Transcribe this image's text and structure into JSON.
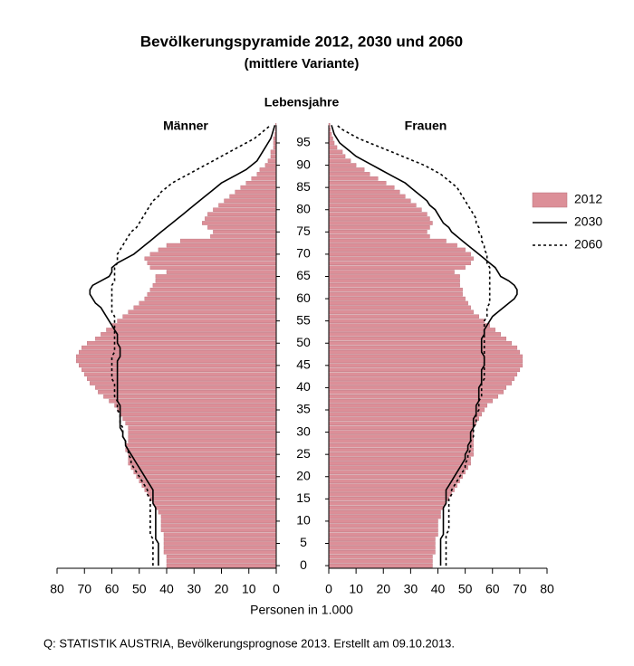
{
  "chart_data": {
    "type": "pyramid",
    "title": "Bevölkerungspyramide  2012, 2030 und 2060",
    "subtitle": "(mittlere Variante)",
    "y_label": "Lebensjahre",
    "left_label": "Männer",
    "right_label": "Frauen",
    "x_label": "Personen in 1.000",
    "source": "Q: STATISTIK AUSTRIA, Bevölkerungsprognose 2013. Erstellt am 09.10.2013.",
    "xlim": [
      0,
      80
    ],
    "xticks": [
      0,
      10,
      20,
      30,
      40,
      50,
      60,
      70,
      80
    ],
    "ylim": [
      -1,
      100
    ],
    "yticks": [
      0,
      5,
      10,
      15,
      20,
      25,
      30,
      35,
      40,
      45,
      50,
      55,
      60,
      65,
      70,
      75,
      80,
      85,
      90,
      95
    ],
    "ages": [
      0,
      1,
      2,
      3,
      4,
      5,
      6,
      7,
      8,
      9,
      10,
      11,
      12,
      13,
      14,
      15,
      16,
      17,
      18,
      19,
      20,
      21,
      22,
      23,
      24,
      25,
      26,
      27,
      28,
      29,
      30,
      31,
      32,
      33,
      34,
      35,
      36,
      37,
      38,
      39,
      40,
      41,
      42,
      43,
      44,
      45,
      46,
      47,
      48,
      49,
      50,
      51,
      52,
      53,
      54,
      55,
      56,
      57,
      58,
      59,
      60,
      61,
      62,
      63,
      64,
      65,
      66,
      67,
      68,
      69,
      70,
      71,
      72,
      73,
      74,
      75,
      76,
      77,
      78,
      79,
      80,
      81,
      82,
      83,
      84,
      85,
      86,
      87,
      88,
      89,
      90,
      91,
      92,
      93,
      94,
      95,
      96,
      97,
      98,
      99
    ],
    "series": [
      {
        "name": "2012",
        "style": "bar",
        "color": "#dc8f98",
        "male": [
          40,
          40,
          40,
          41,
          41,
          41,
          41,
          41,
          42,
          42,
          42,
          42,
          43,
          44,
          45,
          46,
          47,
          48,
          49,
          50,
          51,
          52,
          53,
          54,
          54,
          54,
          55,
          55,
          54,
          54,
          54,
          54,
          55,
          56,
          57,
          58,
          59,
          61,
          63,
          65,
          66,
          68,
          69,
          70,
          71,
          72,
          73,
          73,
          72,
          71,
          69,
          66,
          64,
          62,
          60,
          58,
          56,
          54,
          52,
          50,
          48,
          47,
          46,
          45,
          44,
          44,
          40,
          46,
          47,
          48,
          46,
          43,
          40,
          35,
          24,
          23,
          25,
          27,
          26,
          25,
          23,
          21,
          19,
          17,
          15,
          13,
          11,
          9,
          7,
          6,
          4,
          3,
          2,
          2,
          1,
          1,
          1,
          0.5,
          0.3,
          0.2
        ],
        "female": [
          38,
          38,
          38,
          39,
          39,
          39,
          39,
          40,
          40,
          40,
          40,
          41,
          41,
          42,
          43,
          44,
          45,
          46,
          47,
          48,
          49,
          50,
          51,
          52,
          52,
          53,
          53,
          53,
          53,
          53,
          53,
          53,
          54,
          55,
          56,
          57,
          58,
          60,
          62,
          64,
          65,
          67,
          68,
          69,
          70,
          71,
          71,
          71,
          70,
          69,
          67,
          65,
          63,
          61,
          59,
          57,
          55,
          53,
          52,
          51,
          50,
          49,
          49,
          48,
          48,
          48,
          46,
          50,
          52,
          53,
          52,
          50,
          47,
          43,
          37,
          36,
          37,
          38,
          37,
          36,
          34,
          32,
          30,
          28,
          26,
          24,
          21,
          18,
          15,
          13,
          10,
          8,
          6,
          5,
          3,
          2,
          1.5,
          1,
          0.6,
          0.4
        ]
      },
      {
        "name": "2030",
        "style": "solid",
        "color": "#000000",
        "male": [
          43,
          43,
          43,
          43,
          43,
          43,
          44,
          44,
          44,
          44,
          44,
          44,
          44,
          44,
          45,
          45,
          45,
          45,
          46,
          47,
          48,
          49,
          50,
          51,
          52,
          53,
          54,
          55,
          55,
          56,
          56,
          57,
          57,
          57,
          57,
          57,
          57,
          58,
          58,
          58,
          58,
          58,
          58,
          58,
          58,
          58,
          58,
          57,
          57,
          57,
          58,
          58,
          58,
          59,
          60,
          61,
          62,
          63,
          64,
          66,
          67,
          68,
          68,
          67,
          64,
          61,
          60,
          60,
          58,
          55,
          52,
          50,
          48,
          46,
          44,
          42,
          40,
          38,
          36,
          34,
          32,
          30,
          28,
          26,
          24,
          22,
          20,
          17,
          14,
          11,
          9,
          7,
          6,
          5,
          4,
          3,
          2,
          1.5,
          1,
          0.5
        ],
        "female": [
          41,
          41,
          41,
          41,
          41,
          41,
          41,
          42,
          42,
          42,
          42,
          42,
          42,
          42,
          43,
          43,
          43,
          43,
          44,
          45,
          46,
          47,
          48,
          49,
          50,
          50,
          51,
          51,
          52,
          52,
          52,
          53,
          53,
          53,
          54,
          54,
          54,
          55,
          55,
          55,
          55,
          56,
          56,
          56,
          56,
          57,
          57,
          57,
          56,
          56,
          56,
          56,
          57,
          57,
          58,
          59,
          60,
          62,
          64,
          66,
          68,
          69,
          69,
          68,
          66,
          63,
          62,
          61,
          59,
          57,
          55,
          53,
          51,
          49,
          47,
          45,
          44,
          42,
          41,
          40,
          39,
          37,
          36,
          34,
          32,
          30,
          28,
          25,
          22,
          19,
          16,
          13,
          10,
          8,
          6,
          4,
          3,
          2,
          1.5,
          1
        ]
      },
      {
        "name": "2060",
        "style": "dashed",
        "color": "#000000",
        "male": [
          45,
          45,
          45,
          45,
          45,
          45,
          45,
          46,
          46,
          46,
          46,
          46,
          46,
          46,
          46,
          46,
          47,
          47,
          48,
          49,
          50,
          51,
          52,
          53,
          53,
          54,
          54,
          55,
          55,
          56,
          56,
          56,
          57,
          57,
          57,
          58,
          58,
          58,
          59,
          59,
          59,
          59,
          60,
          60,
          60,
          60,
          60,
          60,
          59,
          59,
          59,
          59,
          59,
          59,
          59,
          59,
          59,
          60,
          60,
          60,
          60,
          60,
          60,
          60,
          59,
          59,
          59,
          59,
          58,
          58,
          58,
          57,
          56,
          55,
          54,
          53,
          51,
          50,
          49,
          48,
          47,
          46,
          45,
          43,
          42,
          40,
          38,
          35,
          32,
          29,
          26,
          23,
          20,
          17,
          14,
          11,
          8,
          6,
          4,
          2
        ],
        "female": [
          43,
          43,
          43,
          43,
          43,
          43,
          43,
          43,
          44,
          44,
          44,
          44,
          44,
          44,
          44,
          44,
          45,
          45,
          46,
          47,
          48,
          49,
          50,
          50,
          51,
          51,
          52,
          52,
          52,
          53,
          53,
          53,
          54,
          54,
          54,
          55,
          55,
          55,
          56,
          56,
          56,
          56,
          57,
          57,
          57,
          57,
          57,
          57,
          57,
          57,
          57,
          57,
          57,
          57,
          57,
          57,
          58,
          58,
          58,
          59,
          59,
          59,
          59,
          59,
          59,
          59,
          59,
          59,
          58,
          58,
          58,
          57,
          57,
          56,
          56,
          55,
          55,
          54,
          54,
          53,
          52,
          51,
          50,
          49,
          48,
          47,
          45,
          43,
          41,
          38,
          35,
          31,
          27,
          23,
          19,
          15,
          11,
          8,
          5,
          3
        ]
      }
    ]
  }
}
